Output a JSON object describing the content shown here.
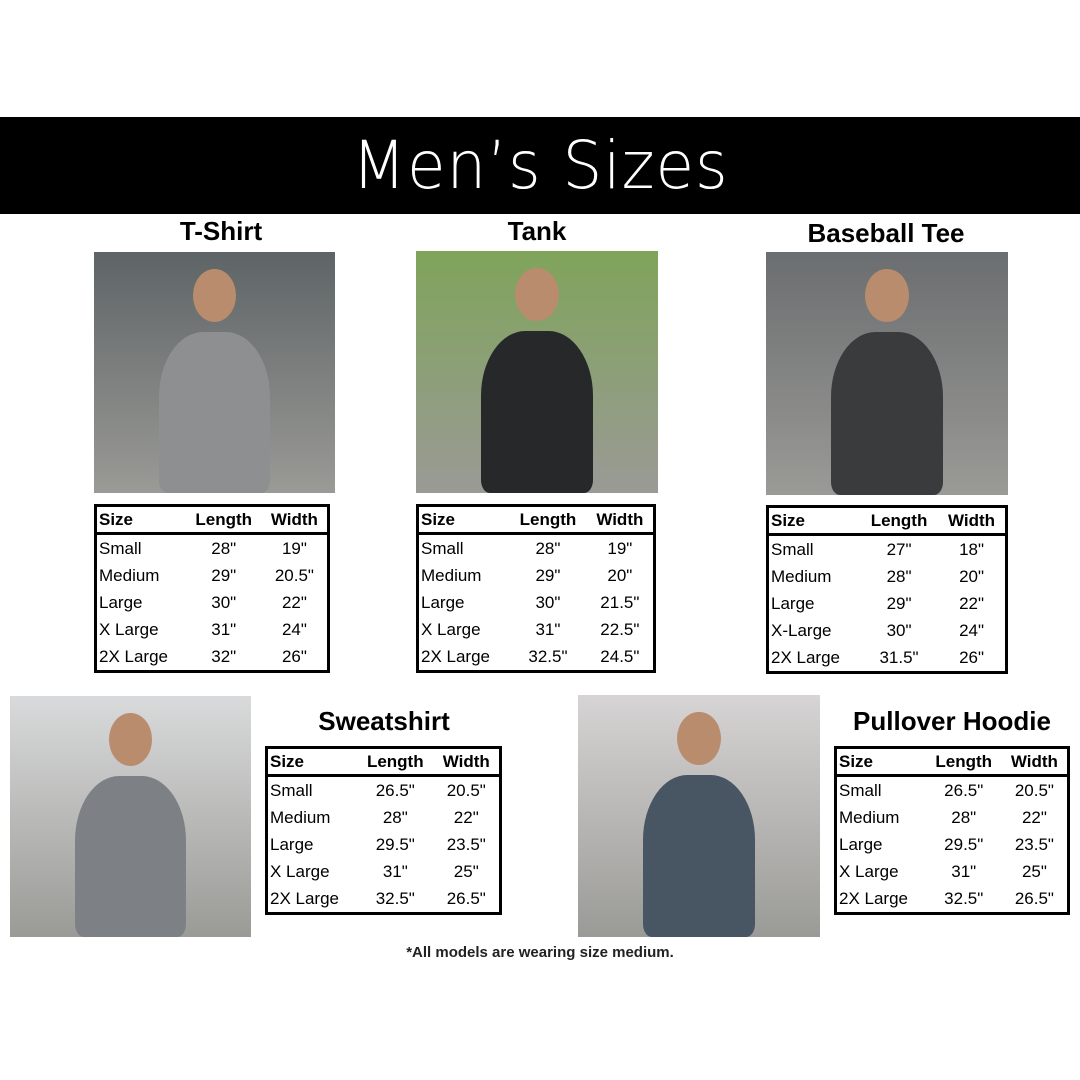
{
  "header": {
    "title": "Men’s Sizes"
  },
  "columns": [
    "Size",
    "Length",
    "Width"
  ],
  "products": [
    {
      "name": "T-Shirt",
      "photo_colors": {
        "bg": "#5e6466",
        "shirt": "#8d8f90"
      },
      "rows": [
        [
          "Small",
          "28\"",
          "19\""
        ],
        [
          "Medium",
          "29\"",
          "20.5\""
        ],
        [
          "Large",
          "30\"",
          "22\""
        ],
        [
          "X Large",
          "31\"",
          "24\""
        ],
        [
          "2X Large",
          "32\"",
          "26\""
        ]
      ]
    },
    {
      "name": "Tank",
      "photo_colors": {
        "bg": "#7fa45a",
        "shirt": "#262829"
      },
      "rows": [
        [
          "Small",
          "28\"",
          "19\""
        ],
        [
          "Medium",
          "29\"",
          "20\""
        ],
        [
          "Large",
          "30\"",
          "21.5\""
        ],
        [
          "X Large",
          "31\"",
          "22.5\""
        ],
        [
          "2X Large",
          "32.5\"",
          "24.5\""
        ]
      ]
    },
    {
      "name": "Baseball Tee",
      "photo_colors": {
        "bg": "#6b6e70",
        "shirt": "#3a3b3c"
      },
      "rows": [
        [
          "Small",
          "27\"",
          "18\""
        ],
        [
          "Medium",
          "28\"",
          "20\""
        ],
        [
          "Large",
          "29\"",
          "22\""
        ],
        [
          "X-Large",
          "30\"",
          "24\""
        ],
        [
          "2X Large",
          "31.5\"",
          "26\""
        ]
      ]
    },
    {
      "name": "Sweatshirt",
      "photo_colors": {
        "bg": "#d9dadb",
        "shirt": "#7d8185"
      },
      "rows": [
        [
          "Small",
          "26.5\"",
          "20.5\""
        ],
        [
          "Medium",
          "28\"",
          "22\""
        ],
        [
          "Large",
          "29.5\"",
          "23.5\""
        ],
        [
          "X Large",
          "31\"",
          "25\""
        ],
        [
          "2X Large",
          "32.5\"",
          "26.5\""
        ]
      ]
    },
    {
      "name": "Pullover Hoodie",
      "photo_colors": {
        "bg": "#d6d4d4",
        "shirt": "#485563"
      },
      "rows": [
        [
          "Small",
          "26.5\"",
          "20.5\""
        ],
        [
          "Medium",
          "28\"",
          "22\""
        ],
        [
          "Large",
          "29.5\"",
          "23.5\""
        ],
        [
          "X Large",
          "31\"",
          "25\""
        ],
        [
          "2X Large",
          "32.5\"",
          "26.5\""
        ]
      ]
    }
  ],
  "footnote": "*All models are wearing size medium."
}
